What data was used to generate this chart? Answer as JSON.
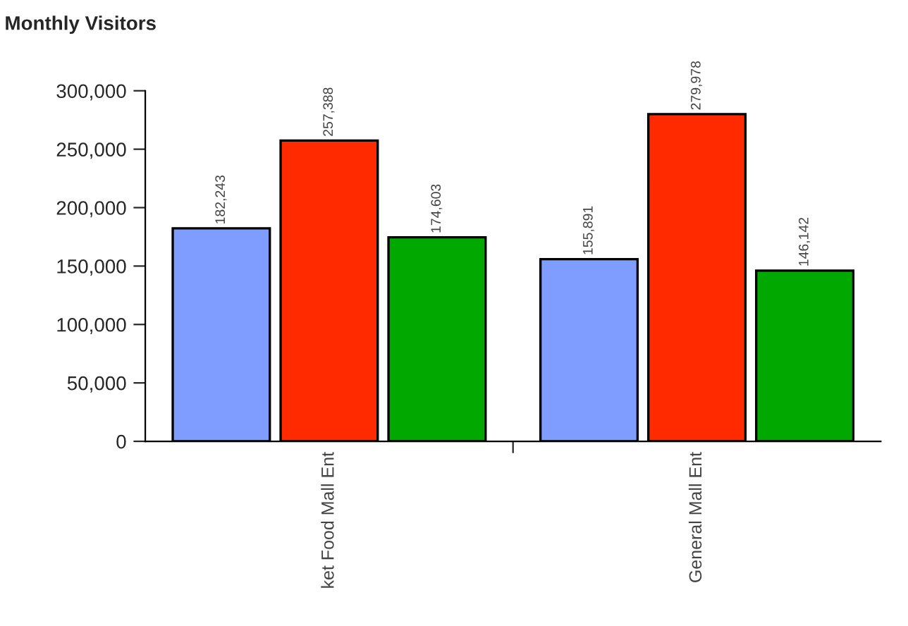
{
  "chart_data": {
    "type": "bar",
    "title": "Monthly Visitors",
    "categories": [
      "ket Food Mall Ent",
      "General Mall Ent"
    ],
    "series": [
      {
        "color": "#7f9cff",
        "values": [
          182243,
          155891
        ],
        "value_labels": [
          "182,243",
          "155,891"
        ]
      },
      {
        "color": "#ff2a00",
        "values": [
          257388,
          279978
        ],
        "value_labels": [
          "257,388",
          "279,978"
        ]
      },
      {
        "color": "#00a800",
        "values": [
          174603,
          146142
        ],
        "value_labels": [
          "174,603",
          "146,142"
        ]
      }
    ],
    "ylim": [
      0,
      300000
    ],
    "yticks": [
      {
        "value": 0,
        "label": "0"
      },
      {
        "value": 50000,
        "label": "50,000"
      },
      {
        "value": 100000,
        "label": "100,000"
      },
      {
        "value": 150000,
        "label": "150,000"
      },
      {
        "value": 200000,
        "label": "200,000"
      },
      {
        "value": 250000,
        "label": "250,000"
      },
      {
        "value": 300000,
        "label": "300,000"
      }
    ],
    "grid": false,
    "legend": false
  }
}
